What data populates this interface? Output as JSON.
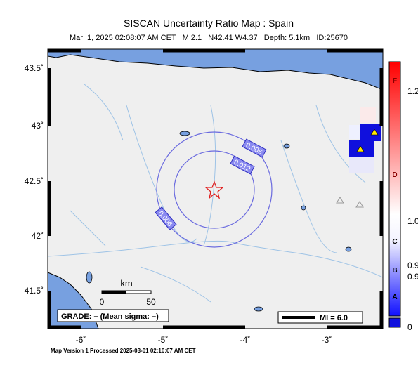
{
  "header": {
    "title": "SISCAN Uncertainty Ratio Map : Spain",
    "subtitle": "Mar  1, 2025 02:08:07 AM CET   M 2.1   N42.41 W4.37   Depth: 5.1km   ID:25670"
  },
  "map": {
    "x_labels": [
      "-6˚",
      "-5˚",
      "-4˚",
      "-3˚"
    ],
    "y_labels": [
      "43.5˚",
      "43˚",
      "42.5˚",
      "42˚",
      "41.5˚"
    ],
    "contour_labels": [
      "0.006",
      "0.012",
      "0.006"
    ],
    "scale": {
      "unit": "km",
      "start": "0",
      "end": "50"
    },
    "grade": "GRADE: – (Mean sigma: –)",
    "mi": "MI = 6.0"
  },
  "colorbar": {
    "grades": [
      "F",
      "D",
      "C",
      "B",
      "A"
    ],
    "ticks": [
      "1.2",
      "1.0",
      "0.9",
      "0.9",
      "0"
    ]
  },
  "footer": "Map Version 1 Processed 2025-03-01 02:10:07 AM CET"
}
